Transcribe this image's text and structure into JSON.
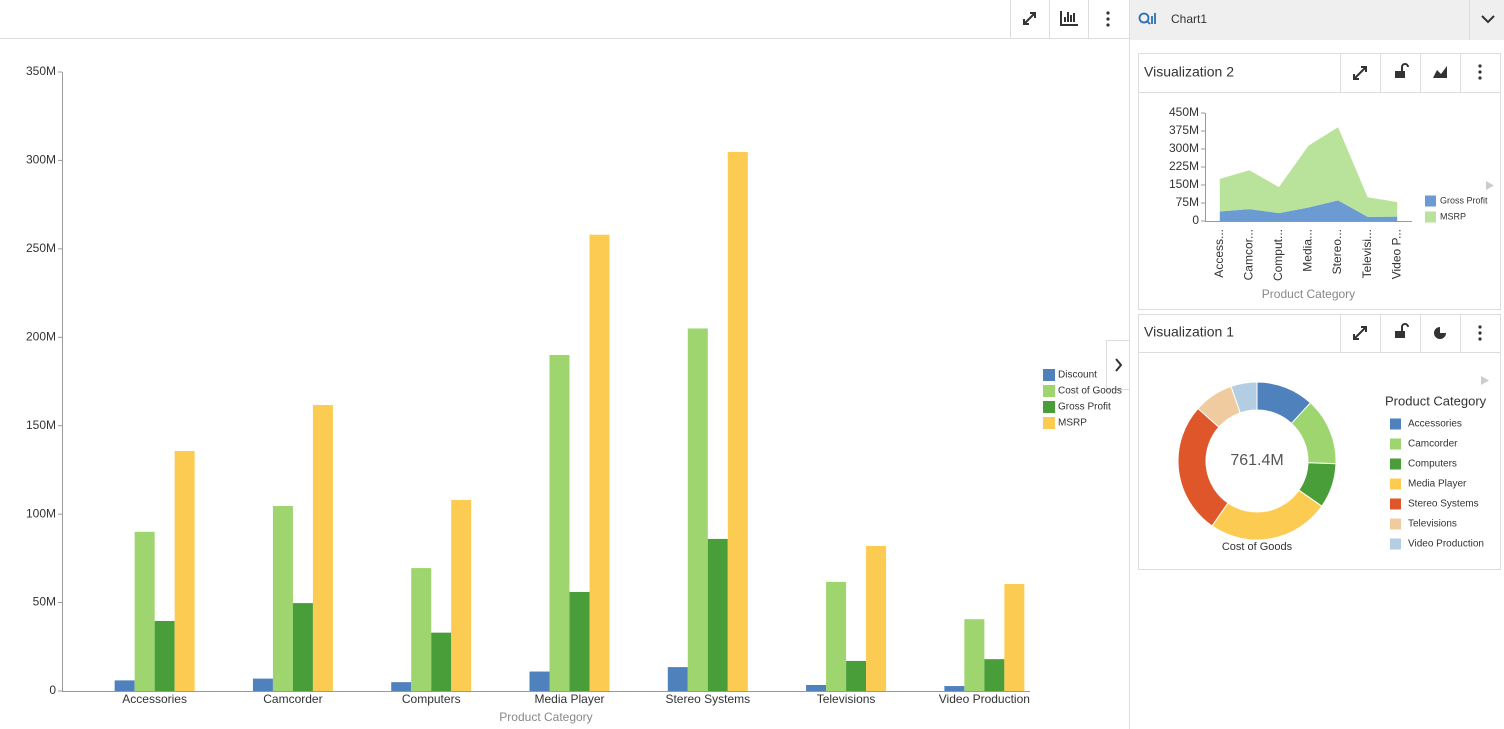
{
  "header": {
    "title": "Chart1"
  },
  "chart_data": [
    {
      "type": "bar",
      "x_label": "Product Category",
      "categories": [
        "Accessories",
        "Camcorder",
        "Computers",
        "Media Player",
        "Stereo Systems",
        "Televisions",
        "Video Production"
      ],
      "series": [
        {
          "name": "Discount",
          "color": "#4f81bd",
          "values": [
            6000000,
            7000000,
            5000000,
            11000000,
            13500000,
            3400000,
            2800000
          ]
        },
        {
          "name": "Cost of Goods",
          "color": "#9ed56f",
          "values": [
            90000000,
            104600000,
            69500000,
            190000000,
            205000000,
            61700000,
            40600000
          ]
        },
        {
          "name": "Gross Profit",
          "color": "#4a9e3a",
          "values": [
            39600000,
            49700000,
            33000000,
            56000000,
            86000000,
            17000000,
            18000000
          ]
        },
        {
          "name": "MSRP",
          "color": "#fccb52",
          "values": [
            135700000,
            161700000,
            108000000,
            258000000,
            304800000,
            82000000,
            60500000
          ]
        }
      ],
      "ylim": [
        0,
        350000000
      ],
      "yticks": [
        0,
        {
          "value": 50000000,
          "label": "50M"
        },
        {
          "value": 100000000,
          "label": "100M"
        },
        {
          "value": 150000000,
          "label": "150M"
        },
        {
          "value": 200000000,
          "label": "200M"
        },
        {
          "value": 250000000,
          "label": "250M"
        },
        {
          "value": 300000000,
          "label": "300M"
        },
        {
          "value": 350000000,
          "label": "350M"
        }
      ],
      "grid": false,
      "legend": "right"
    },
    {
      "type": "area",
      "title": "Visualization 2",
      "x_label": "Product Category",
      "stacked": true,
      "categories": [
        "Access...",
        "Camcor...",
        "Comput...",
        "Media...",
        "Stereo...",
        "Televisi...",
        "Video P..."
      ],
      "series": [
        {
          "name": "Gross Profit",
          "color": "#6b9bd2",
          "values": [
            39600000,
            49700000,
            33000000,
            56000000,
            86000000,
            17000000,
            18000000
          ]
        },
        {
          "name": "MSRP",
          "color": "#b9e29a",
          "values": [
            135700000,
            161700000,
            108000000,
            258000000,
            304800000,
            82000000,
            60500000
          ]
        }
      ],
      "ylim": [
        0,
        450000000
      ],
      "yticks": [
        0,
        {
          "value": 75000000,
          "label": "75M"
        },
        {
          "value": 150000000,
          "label": "150M"
        },
        {
          "value": 225000000,
          "label": "225M"
        },
        {
          "value": 300000000,
          "label": "300M"
        },
        {
          "value": 375000000,
          "label": "375M"
        },
        {
          "value": 450000000,
          "label": "450M"
        }
      ],
      "legend": "right"
    },
    {
      "type": "pie",
      "title": "Visualization 1",
      "subtitle": "Cost of Goods",
      "center_label": "761.4M",
      "legend_title": "Product Category",
      "categories": [
        "Accessories",
        "Camcorder",
        "Computers",
        "Media Player",
        "Stereo Systems",
        "Televisions",
        "Video Production"
      ],
      "values": [
        90000000,
        104600000,
        69500000,
        190000000,
        205000000,
        61700000,
        40600000
      ],
      "colors": [
        "#4f81bd",
        "#9ed56f",
        "#4a9e3a",
        "#fccb52",
        "#e0562b",
        "#f0cba0",
        "#b3cde3"
      ],
      "legend": "right"
    }
  ]
}
